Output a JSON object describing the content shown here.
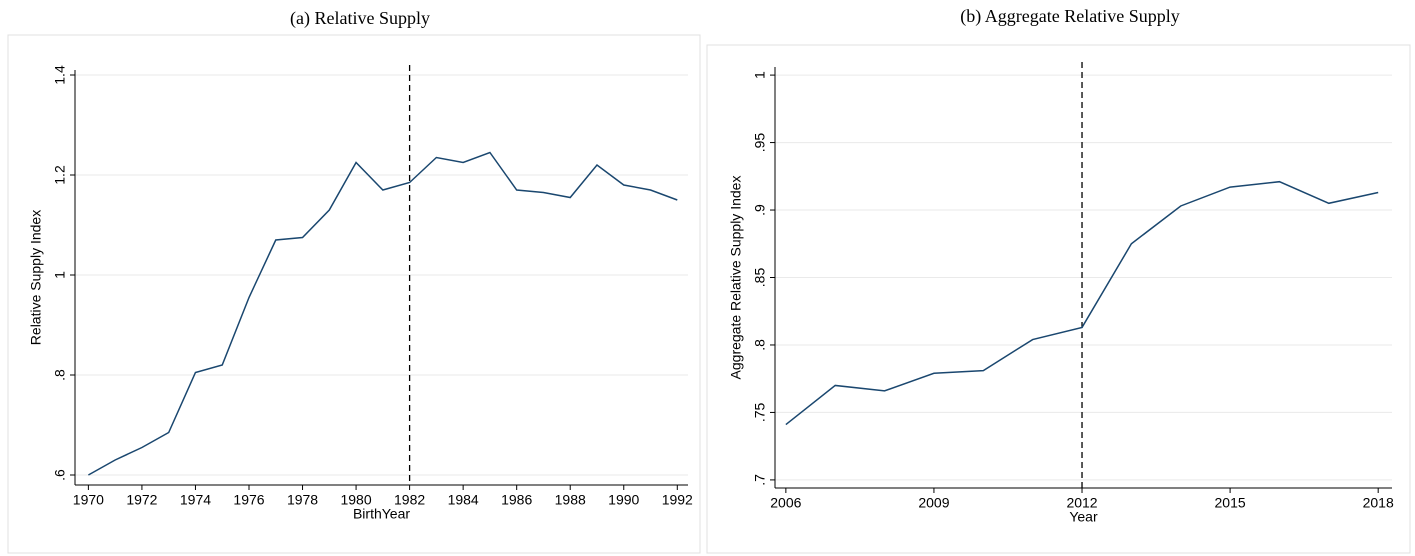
{
  "chart_data": [
    {
      "type": "line",
      "title": "(a) Relative Supply",
      "xlabel": "BirthYear",
      "ylabel": "Relative Supply Index",
      "x": [
        1970,
        1971,
        1972,
        1973,
        1974,
        1975,
        1976,
        1977,
        1978,
        1979,
        1980,
        1981,
        1982,
        1983,
        1984,
        1985,
        1986,
        1987,
        1988,
        1989,
        1990,
        1991,
        1992
      ],
      "values": [
        0.6,
        0.63,
        0.655,
        0.685,
        0.805,
        0.82,
        0.955,
        1.07,
        1.075,
        1.13,
        1.225,
        1.17,
        1.185,
        1.235,
        1.225,
        1.245,
        1.17,
        1.165,
        1.155,
        1.22,
        1.18,
        1.17,
        1.15
      ],
      "color": "#1a476f",
      "xlim": [
        1969.5,
        1992.4
      ],
      "xticks": [
        1970,
        1972,
        1974,
        1976,
        1978,
        1980,
        1982,
        1984,
        1986,
        1988,
        1990,
        1992
      ],
      "ylim": [
        0.58,
        1.41
      ],
      "yticks": [
        {
          "value": 0.6,
          "label": ".6"
        },
        {
          "value": 0.8,
          "label": ".8"
        },
        1,
        1.2,
        1.4
      ],
      "vline": 1982,
      "grid": true
    },
    {
      "type": "line",
      "title": "(b) Aggregate Relative Supply",
      "xlabel": "Year",
      "ylabel": "Aggregate Relative Supply Index",
      "x": [
        2006,
        2007,
        2008,
        2009,
        2010,
        2011,
        2012,
        2013,
        2014,
        2015,
        2016,
        2017,
        2018
      ],
      "values": [
        0.741,
        0.77,
        0.766,
        0.779,
        0.781,
        0.804,
        0.813,
        0.875,
        0.903,
        0.917,
        0.921,
        0.905,
        0.913
      ],
      "color": "#1a476f",
      "xlim": [
        2005.78,
        2018.28
      ],
      "xticks": [
        2006,
        2009,
        2012,
        2015,
        2018
      ],
      "ylim": [
        0.694,
        1.006
      ],
      "yticks": [
        {
          "value": 0.7,
          "label": ".7"
        },
        {
          "value": 0.75,
          "label": ".75"
        },
        {
          "value": 0.8,
          "label": ".8"
        },
        {
          "value": 0.85,
          "label": ".85"
        },
        {
          "value": 0.9,
          "label": ".9"
        },
        {
          "value": 0.95,
          "label": ".95"
        },
        1
      ],
      "vline": 2012,
      "grid": true
    }
  ]
}
